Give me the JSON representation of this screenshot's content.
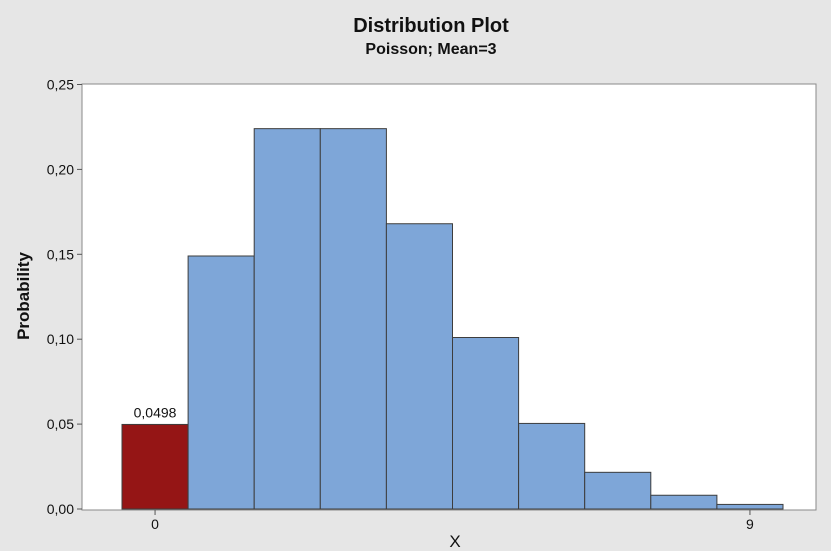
{
  "chart_data": {
    "type": "bar",
    "title": "Distribution Plot",
    "subtitle": "Poisson; Mean=3",
    "xlabel": "X",
    "ylabel": "Probability",
    "ylim": [
      0,
      0.25
    ],
    "y_ticks": [
      "0,00",
      "0,05",
      "0,10",
      "0,15",
      "0,20",
      "0,25"
    ],
    "y_tick_values": [
      0,
      0.05,
      0.1,
      0.15,
      0.2,
      0.25
    ],
    "x_ticks": [
      {
        "label": "0",
        "x": 0
      },
      {
        "label": "9",
        "x": 9
      }
    ],
    "categories": [
      0,
      1,
      2,
      3,
      4,
      5,
      6,
      7,
      8,
      9
    ],
    "values": [
      0.0498,
      0.149,
      0.224,
      0.224,
      0.168,
      0.101,
      0.0504,
      0.0216,
      0.0081,
      0.0027
    ],
    "highlight": {
      "index": 0,
      "label": "0,0498"
    },
    "grid": false,
    "legend": "none"
  },
  "colors": {
    "bar": "#7ea6d8",
    "highlight": "#951515",
    "outline": "#3d3d3d",
    "background": "#e6e6e6",
    "plot_area": "#ffffff"
  }
}
